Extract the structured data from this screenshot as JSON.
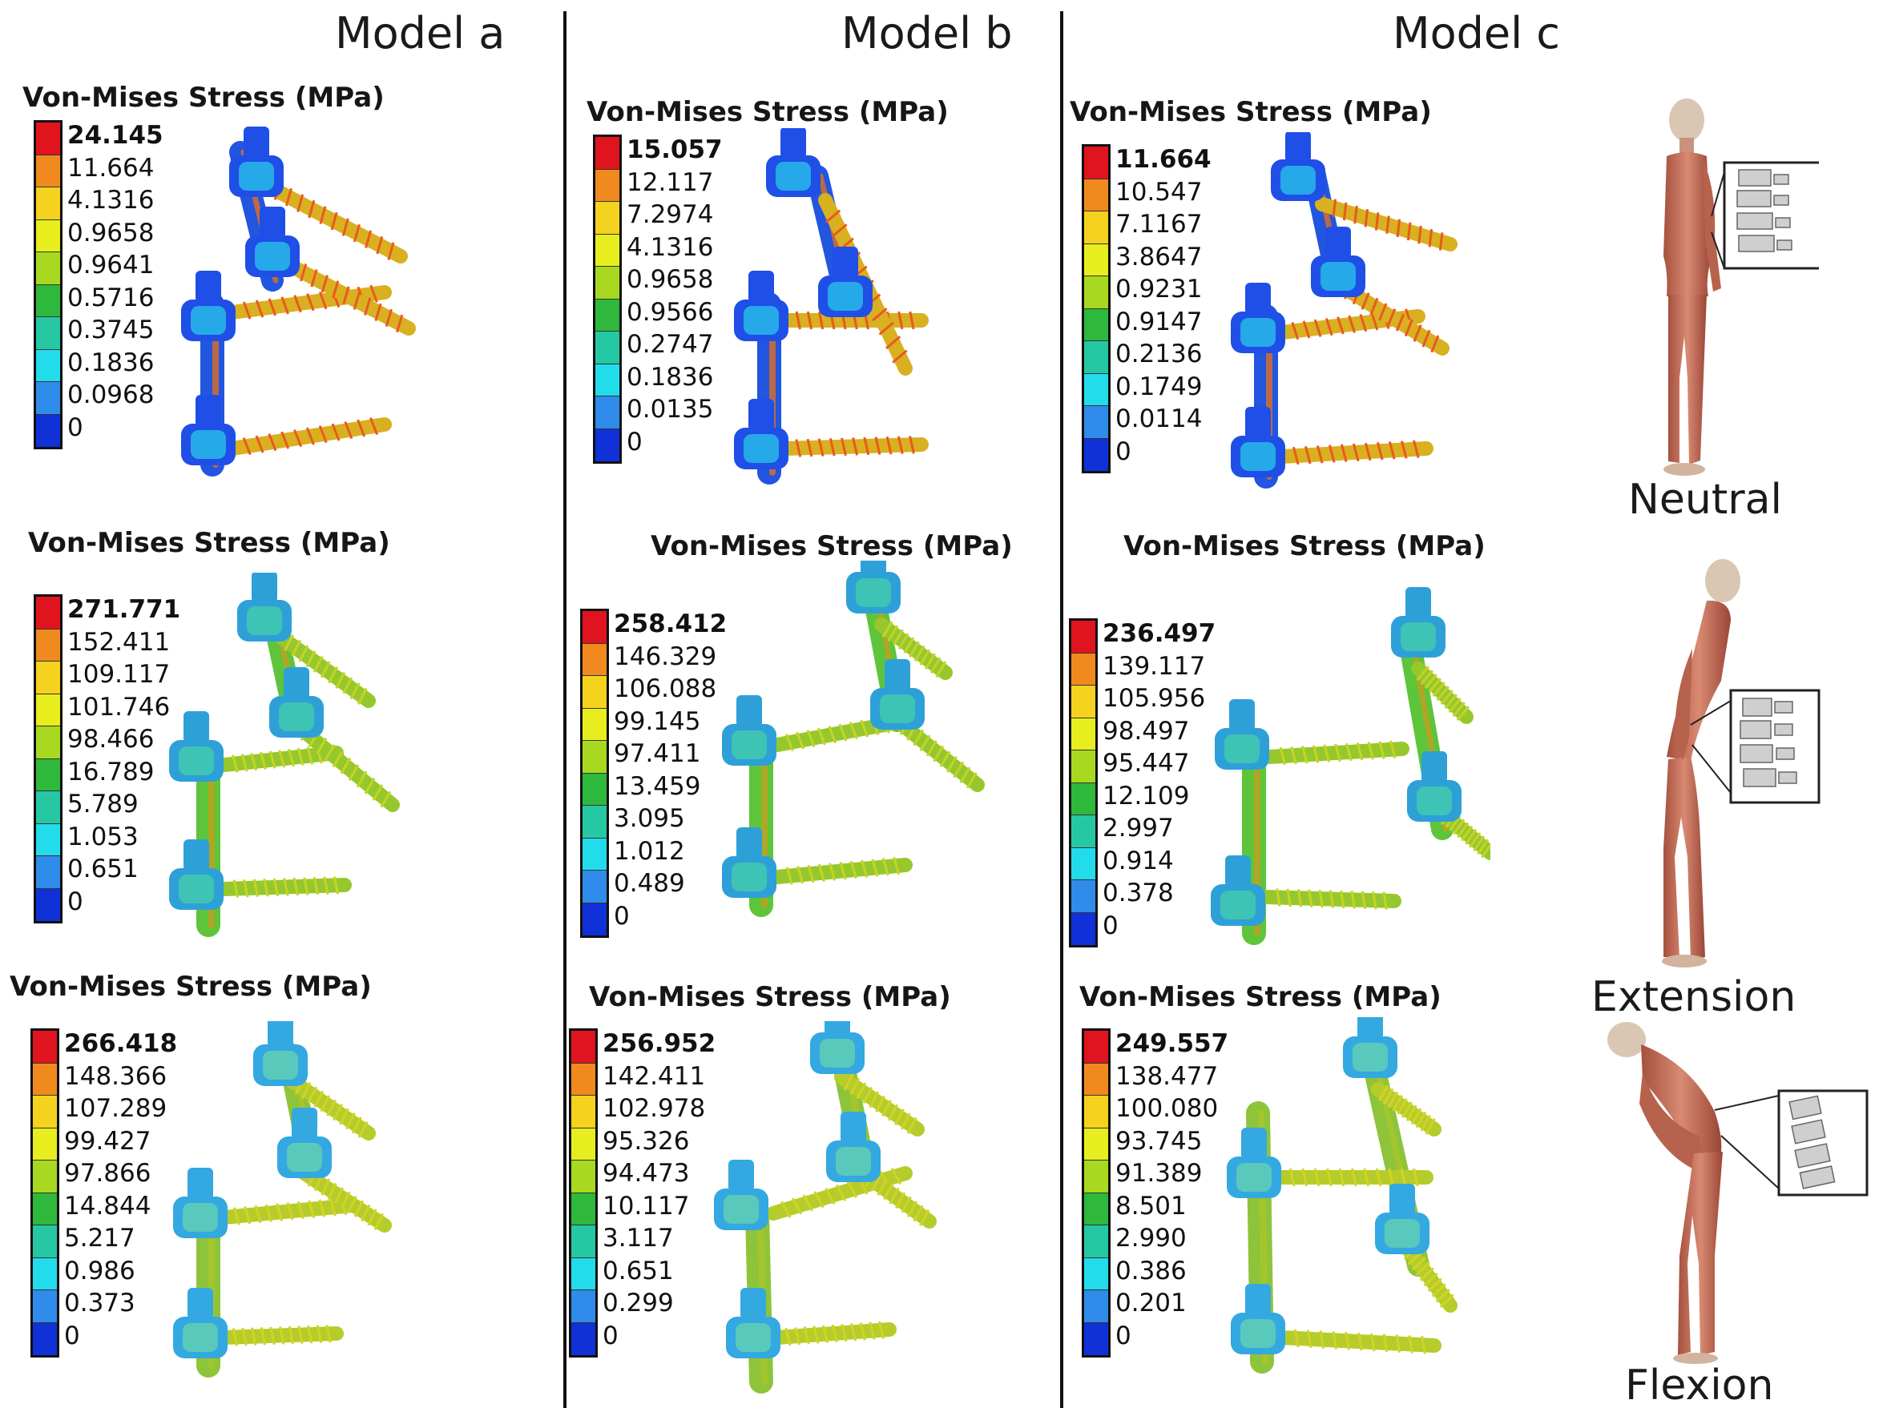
{
  "models": [
    {
      "title": "Model a"
    },
    {
      "title": "Model b"
    },
    {
      "title": "Model c"
    }
  ],
  "stress_title": "Von-Mises Stress (MPa)",
  "legend_colors": [
    "#e0141e",
    "#f08a1e",
    "#f5d21e",
    "#e8ee1e",
    "#a8d820",
    "#2eb83c",
    "#26c8a4",
    "#22dcec",
    "#2f8cea",
    "#1030d8"
  ],
  "grid": [
    {
      "model": "a",
      "posture": "neutral",
      "labels": [
        "24.145",
        "11.664",
        "4.1316",
        "0.9658",
        "0.9641",
        "0.5716",
        "0.3745",
        "0.1836",
        "0.0968",
        "0"
      ]
    },
    {
      "model": "b",
      "posture": "neutral",
      "labels": [
        "15.057",
        "12.117",
        "7.2974",
        "4.1316",
        "0.9658",
        "0.9566",
        "0.2747",
        "0.1836",
        "0.0135",
        "0"
      ]
    },
    {
      "model": "c",
      "posture": "neutral",
      "labels": [
        "11.664",
        "10.547",
        "7.1167",
        "3.8647",
        "0.9231",
        "0.9147",
        "0.2136",
        "0.1749",
        "0.0114",
        "0"
      ]
    },
    {
      "model": "a",
      "posture": "extension",
      "labels": [
        "271.771",
        "152.411",
        "109.117",
        "101.746",
        "98.466",
        "16.789",
        "5.789",
        "1.053",
        "0.651",
        "0"
      ]
    },
    {
      "model": "b",
      "posture": "extension",
      "labels": [
        "258.412",
        "146.329",
        "106.088",
        "99.145",
        "97.411",
        "13.459",
        "3.095",
        "1.012",
        "0.489",
        "0"
      ]
    },
    {
      "model": "c",
      "posture": "extension",
      "labels": [
        "236.497",
        "139.117",
        "105.956",
        "98.497",
        "95.447",
        "12.109",
        "2.997",
        "0.914",
        "0.378",
        "0"
      ]
    },
    {
      "model": "a",
      "posture": "flexion",
      "labels": [
        "266.418",
        "148.366",
        "107.289",
        "99.427",
        "97.866",
        "14.844",
        "5.217",
        "0.986",
        "0.373",
        "0"
      ]
    },
    {
      "model": "b",
      "posture": "flexion",
      "labels": [
        "256.952",
        "142.411",
        "102.978",
        "95.326",
        "94.473",
        "10.117",
        "3.117",
        "0.651",
        "0.299",
        "0"
      ]
    },
    {
      "model": "c",
      "posture": "flexion",
      "labels": [
        "249.557",
        "138.477",
        "100.080",
        "93.745",
        "91.389",
        "8.501",
        "2.990",
        "0.386",
        "0.201",
        "0"
      ]
    }
  ],
  "postures": [
    {
      "label": "Neutral"
    },
    {
      "label": "Extension"
    },
    {
      "label": "Flexion"
    }
  ]
}
